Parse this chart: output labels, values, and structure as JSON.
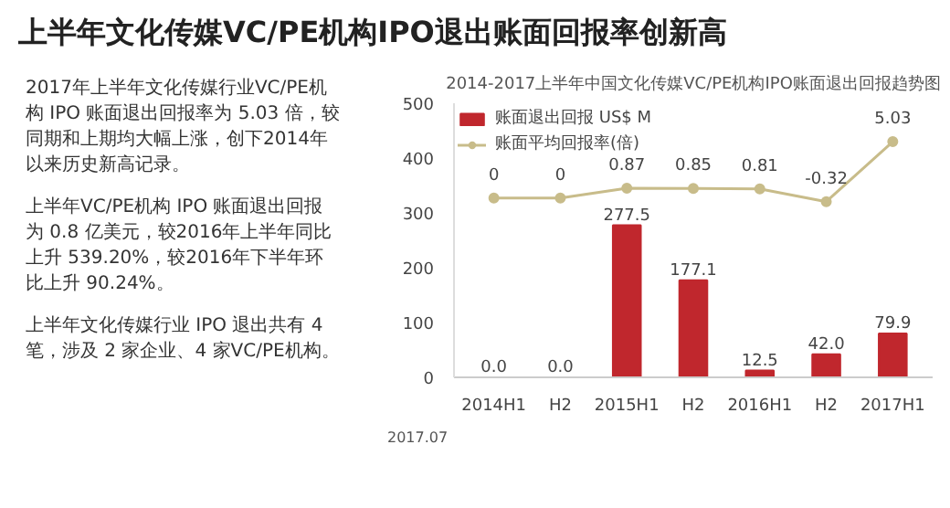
{
  "chart_data": {
    "type": "bar",
    "title": "上半年文化传媒VC/PE机构IPO退出账面回报率创新高",
    "subtitle": "2014-2017上半年中国文化传媒VC/PE机构IPO账面退出回报趋势图",
    "categories": [
      "2014H1",
      "H2",
      "2015H1",
      "H2",
      "2016H1",
      "H2",
      "2017H1"
    ],
    "series": [
      {
        "name": "账面退出回报 US$ M",
        "color": "#c0272d",
        "values": [
          0.0,
          0.0,
          277.5,
          177.1,
          12.5,
          42.0,
          79.9
        ],
        "value_labels": [
          "0.0",
          "0.0",
          "277.5",
          "177.1",
          "12.5",
          "42.0",
          "79.9"
        ]
      },
      {
        "name": "账面平均回报率(倍)",
        "type": "line",
        "axis": "y2",
        "color": "#c8bc8a",
        "marker": "circle",
        "values": [
          0,
          0,
          0.87,
          0.85,
          0.81,
          -0.32,
          5.03
        ]
      }
    ],
    "ylim": [
      0,
      500
    ],
    "yticks": [
      0,
      100,
      200,
      300,
      400,
      500
    ],
    "y2lim": [
      -16.0,
      8.46
    ],
    "data_labels": true,
    "grid": false,
    "legend": "top left",
    "annotations": [
      "2017年上半年文化传媒行业VC/PE机构 IPO 账面退出回报率为 5.03 倍，较同期和上期均大幅上涨，创下2014年以来历史新高记录。",
      "上半年VC/PE机构 IPO 账面退出回报为 0.8 亿美元，较2016年上半年同比上升 539.20%，较2016年下半年环比上升 90.24%。",
      "上半年文化传媒行业 IPO 退出共有 4 笔，涉及 2 家企业、4 家VC/PE机构。",
      "2017.07"
    ]
  }
}
